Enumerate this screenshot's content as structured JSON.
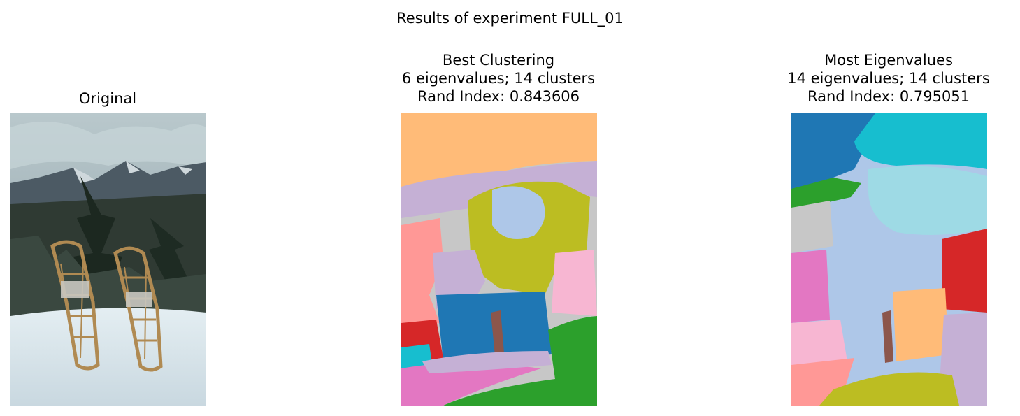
{
  "figure": {
    "suptitle": "Results of experiment FULL_01"
  },
  "panels": [
    {
      "id": "original",
      "title_lines": [
        "Original"
      ],
      "image": "photo of two wooden snowshoes standing in snow with pine trees and mountains behind"
    },
    {
      "id": "best",
      "title_lines": [
        "Best Clustering",
        "6 eigenvalues; 14 clusters",
        "Rand Index: 0.843606"
      ],
      "eigenvalues": 6,
      "clusters": 14,
      "rand_index": 0.843606
    },
    {
      "id": "most",
      "title_lines": [
        "Most Eigenvalues",
        "14 eigenvalues; 14 clusters",
        "Rand Index: 0.795051"
      ],
      "eigenvalues": 14,
      "clusters": 14,
      "rand_index": 0.795051
    }
  ],
  "palette": {
    "blue": "#1f77b4",
    "orange": "#ffbb78",
    "green": "#2ca02c",
    "red": "#d62728",
    "lavender": "#c5b0d5",
    "brown": "#8c564b",
    "pink": "#e377c2",
    "light_pink": "#f7b6d2",
    "gray": "#c7c7c7",
    "olive": "#bcbd22",
    "cyan": "#17becf",
    "light_blue": "#aec7e8",
    "salmon": "#ff9896",
    "light_cyan": "#9edae5"
  }
}
